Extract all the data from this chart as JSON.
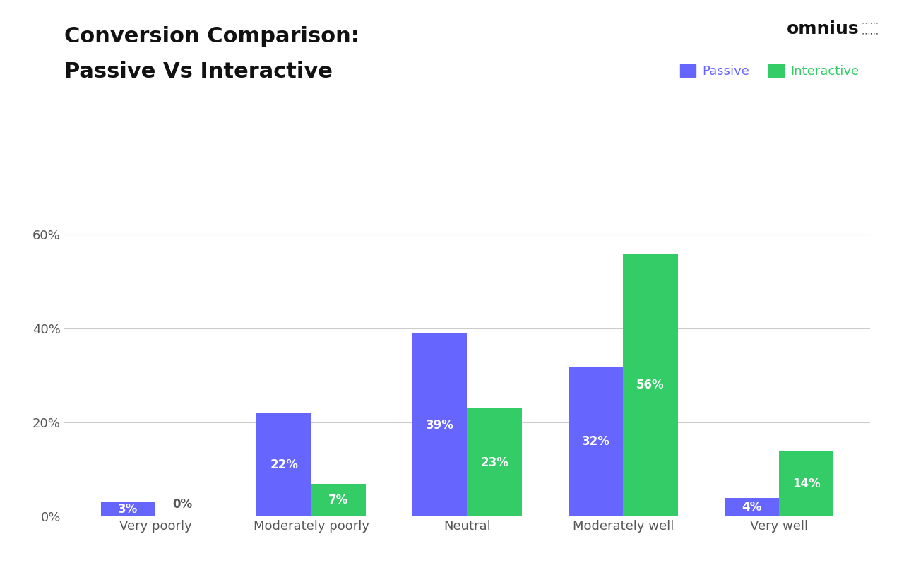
{
  "title_line1": "Conversion Comparison:",
  "title_line2": "Passive Vs Interactive",
  "categories": [
    "Very poorly",
    "Moderately poorly",
    "Neutral",
    "Moderately well",
    "Very well"
  ],
  "passive_values": [
    3,
    22,
    39,
    32,
    4
  ],
  "interactive_values": [
    0,
    7,
    23,
    56,
    14
  ],
  "passive_color": "#6666ff",
  "interactive_color": "#33cc66",
  "passive_label": "Passive",
  "interactive_label": "Interactive",
  "ylim": [
    0,
    65
  ],
  "yticks": [
    0,
    20,
    40,
    60
  ],
  "ytick_labels": [
    "0%",
    "20%",
    "40%",
    "60%"
  ],
  "background_color": "#ffffff",
  "grid_color": "#cccccc",
  "title_color": "#111111",
  "axis_label_color": "#555555",
  "bar_width": 0.35,
  "title_fontsize": 22,
  "tick_fontsize": 13,
  "legend_fontsize": 13,
  "bar_label_fontsize": 12,
  "logo_text": "omnius",
  "logo_fontsize": 18
}
